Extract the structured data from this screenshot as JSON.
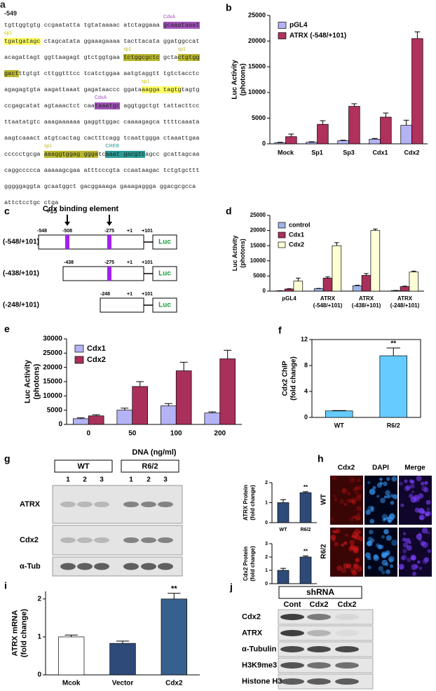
{
  "sequence": {
    "panel": "a",
    "start": "-549",
    "end": "+15",
    "lines": [
      [
        {
          "text": "tgttggtgtg ccgaatatta tgtataaaac atctaggaaa "
        },
        {
          "text": "gcaaataaat",
          "color": "#a052b8",
          "label": "CdxA"
        }
      ],
      [
        {
          "text": "tgatgatagc",
          "color": "#ffff66",
          "label": "sp1"
        },
        {
          "text": " ctagcatata ggaaagaaaa tacttacata ggatggccat"
        }
      ],
      [
        {
          "text": "acagattagt ggttaagagt gtctggtgaa "
        },
        {
          "text": "tctggcgctc",
          "color": "#b8b82e",
          "label": "sp1"
        },
        {
          "text": " gcta"
        },
        {
          "text": "ctgtgg",
          "color": "#b8b82e",
          "label": "sp1"
        }
      ],
      [
        {
          "text": "gact",
          "color": "#b8b82e"
        },
        {
          "text": "ttgtgt cttggtttcc tcatctggaa aatgtaggtt tgtctacctc"
        }
      ],
      [
        {
          "text": "agagagtgta aagattaaat gagataaccc ggata"
        },
        {
          "text": "aagga tagtg",
          "color": "#ffff66",
          "label": "sp1"
        },
        {
          "text": "tagtg"
        }
      ],
      [
        {
          "text": "ccgagcatat agtaaactct caa"
        },
        {
          "text": "taaatgc",
          "color": "#a052b8",
          "label": "CdxA"
        },
        {
          "text": " aggtggctgt tattacttcc"
        }
      ],
      [
        {
          "text": "ttaatatgtc aaagaaaaaa gaggttggac caaaagagca ttttcaaata"
        }
      ],
      [
        {
          "text": "aagtcaaact atgtcactag cactttcagg tcaattggga ctaaattgaa"
        }
      ],
      [
        {
          "text": "ccccctgcga "
        },
        {
          "text": "aaaggtggag ggga",
          "color": "#b8b82e",
          "label": "sp1"
        },
        {
          "text": "tc"
        },
        {
          "text": "aaat gacgtc",
          "color": "#2a9a94",
          "label": "CREB"
        },
        {
          "text": "agcc gcattagcaa"
        }
      ],
      [
        {
          "text": "caggccccca aaaaagcgaa atttcccgta ccaataagac tctgtgcttt"
        }
      ],
      [
        {
          "text": "gggggaggta gcaatggct gacggaaaga gaaagaggga ggacgcgcca"
        }
      ],
      [
        {
          "text": "attctcctgc ctga"
        }
      ]
    ]
  },
  "diagram": {
    "panel": "c",
    "title": "Cdx binding element",
    "constructs": [
      {
        "name": "(-548/+101)",
        "positions": [
          "-548",
          "-508",
          "-275",
          "+1",
          "+101"
        ],
        "reporter": "Luc"
      },
      {
        "name": "(-438/+101)",
        "positions": [
          "-438",
          "-275",
          "+1",
          "+101"
        ],
        "reporter": "Luc"
      },
      {
        "name": "(-248/+101)",
        "positions": [
          "-248",
          "+1",
          "+101"
        ],
        "reporter": "Luc"
      }
    ]
  },
  "chart_data": [
    {
      "type": "bar",
      "panel": "b",
      "ylabel": [
        "Luc Activity",
        "(photons)"
      ],
      "categories": [
        "Mock",
        "Sp1",
        "Sp3",
        "Cdx1",
        "Cdx2"
      ],
      "series": [
        {
          "name": "pGL4",
          "color": "#b3b3f5",
          "values": [
            200,
            300,
            600,
            900,
            3600
          ],
          "errors": [
            100,
            100,
            100,
            150,
            1000
          ]
        },
        {
          "name": "ATRX (-548/+101)",
          "color": "#b0305e",
          "values": [
            1400,
            3800,
            7300,
            5200,
            20500
          ],
          "errors": [
            500,
            700,
            500,
            800,
            1300
          ]
        }
      ],
      "ylim": [
        0,
        25000
      ],
      "yticks": [
        0,
        5000,
        10000,
        15000,
        20000,
        25000
      ],
      "legend": "upper left"
    },
    {
      "type": "bar",
      "panel": "d",
      "ylabel": [
        "Luc Activity",
        "(photons)"
      ],
      "categories": [
        [
          "pGL4"
        ],
        [
          "ATRX",
          "(-548/+101)"
        ],
        [
          "ATRX",
          "(-438/+101)"
        ],
        [
          "ATRX",
          "(-248/+101)"
        ]
      ],
      "series": [
        {
          "name": "control",
          "color": "#9fb4e6",
          "values": [
            100,
            800,
            1800,
            200
          ],
          "errors": [
            50,
            100,
            150,
            50
          ]
        },
        {
          "name": "Cdx1",
          "color": "#a8305a",
          "values": [
            700,
            4300,
            5200,
            1500
          ],
          "errors": [
            100,
            400,
            600,
            150
          ]
        },
        {
          "name": "Cdx2",
          "color": "#ffffd5",
          "values": [
            3300,
            15000,
            20000,
            6300
          ],
          "errors": [
            1000,
            1000,
            500,
            300
          ]
        }
      ],
      "ylim": [
        0,
        25000
      ],
      "yticks": [
        0,
        5000,
        10000,
        15000,
        20000,
        25000
      ],
      "legend": "upper left"
    },
    {
      "type": "bar",
      "panel": "e",
      "ylabel": [
        "Luc Activity",
        "(photons)"
      ],
      "xlabel": "DNA (ng/ml)",
      "categories": [
        "0",
        "50",
        "100",
        "200"
      ],
      "series": [
        {
          "name": "Cdx1",
          "color": "#b3b3f5",
          "values": [
            2000,
            5000,
            6500,
            4000
          ],
          "errors": [
            300,
            700,
            800,
            400
          ]
        },
        {
          "name": "Cdx2",
          "color": "#a8305a",
          "values": [
            3000,
            13300,
            18800,
            23000
          ],
          "errors": [
            400,
            1700,
            3000,
            3000
          ]
        }
      ],
      "ylim": [
        0,
        30000
      ],
      "yticks": [
        0,
        5000,
        10000,
        15000,
        20000,
        25000,
        30000
      ],
      "legend": "upper left"
    },
    {
      "type": "bar",
      "panel": "f",
      "ylabel": [
        "Cdx2 ChIP",
        "(fold change)"
      ],
      "categories": [
        "WT",
        "R6/2"
      ],
      "values": [
        1,
        9.5
      ],
      "errors": [
        0.05,
        1.2
      ],
      "color": "#66ccff",
      "ylim": [
        0,
        12
      ],
      "yticks": [
        0,
        4,
        8,
        12
      ],
      "frame": true,
      "significance": {
        "category": "R6/2",
        "text": "**"
      }
    },
    {
      "type": "bar",
      "ylabel": [
        "ATRX Protein",
        "(fold change)"
      ],
      "categories": [
        "WT",
        "R6/2"
      ],
      "values": [
        1,
        1.5
      ],
      "errors": [
        0.15,
        0.05
      ],
      "color": "#2e4a78",
      "ylim": [
        0,
        2
      ],
      "yticks": [
        0,
        1,
        2
      ],
      "significance": {
        "category": "R6/2",
        "text": "**"
      }
    },
    {
      "type": "bar",
      "ylabel": [
        "Cdx2 Protein",
        "(fold change)"
      ],
      "categories": [
        "WT",
        "R6/2"
      ],
      "values": [
        1,
        2
      ],
      "errors": [
        0.15,
        0.08
      ],
      "color": "#2e4a78",
      "ylim": [
        0,
        3
      ],
      "yticks": [
        0,
        1,
        2,
        3
      ],
      "significance": {
        "category": "R6/2",
        "text": "**"
      }
    },
    {
      "type": "bar",
      "panel": "i",
      "ylabel": [
        "ATRX mRNA",
        "(fold change)"
      ],
      "categories": [
        "Mcok",
        "Vector",
        "Cdx2"
      ],
      "values": [
        1,
        0.83,
        2.0
      ],
      "errors": [
        0.05,
        0.06,
        0.15
      ],
      "colors": [
        "#ffffff",
        "#2e4a78",
        "#36608e"
      ],
      "ylim": [
        0,
        2.2
      ],
      "yticks": [
        0,
        1,
        2
      ],
      "significance": {
        "category": "Cdx2",
        "text": "**"
      }
    }
  ],
  "blot_g": {
    "panel": "g",
    "groups": [
      "WT",
      "R6/2"
    ],
    "lanes": [
      "1",
      "2",
      "3",
      "1",
      "2",
      "3"
    ],
    "rows": [
      "ATRX",
      "Cdx2",
      "α-Tub"
    ]
  },
  "images_h": {
    "panel": "h",
    "columns": [
      "Cdx2",
      "DAPI",
      "Merge"
    ],
    "rows": [
      "WT",
      "R6/2"
    ]
  },
  "blot_j": {
    "panel": "j",
    "title": "shRNA",
    "columns": [
      "Cont",
      "Cdx2",
      "Cdx2"
    ],
    "rows": [
      "Cdx2",
      "ATRX",
      "α-Tubulin",
      "H3K9me3",
      "Histone H3"
    ]
  }
}
